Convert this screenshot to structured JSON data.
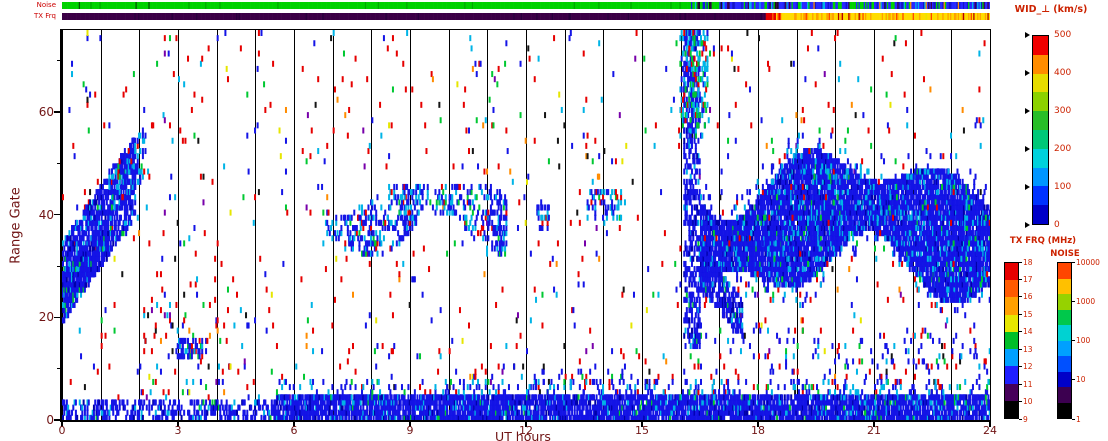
{
  "colors": {
    "background": "#ffffff",
    "axis_text": "#701414",
    "colorbar_label": "#cc2200",
    "strip_label": "#cc0000",
    "grid": "#000000"
  },
  "strips": {
    "noise_label": "Noise",
    "txfrq_label": "TX Frq"
  },
  "axes": {
    "xlabel": "UT hours",
    "ylabel": "Range Gate",
    "x_ticks": [
      0,
      3,
      6,
      9,
      12,
      15,
      18,
      21,
      24
    ],
    "y_ticks": [
      0,
      20,
      40,
      60
    ],
    "y_minor_ticks": [
      10,
      30,
      50,
      70
    ],
    "x_range_hours": [
      0,
      24
    ],
    "y_range_gates": [
      0,
      76
    ]
  },
  "colorbars": {
    "wid": {
      "title": "WID_⊥ (km/s)",
      "range": [
        0,
        500
      ],
      "ticks": [
        0,
        100,
        200,
        300,
        400,
        500
      ],
      "colors_bottom_to_top": [
        "#0000c8",
        "#0032ff",
        "#0096ff",
        "#00d2dc",
        "#00c878",
        "#28be28",
        "#8cd200",
        "#e6dc00",
        "#ff8c00",
        "#f00000"
      ]
    },
    "txfrq": {
      "title": "TX FRQ (MHz)",
      "ticks": [
        9,
        10,
        11,
        12,
        13,
        14,
        15,
        16,
        17,
        18
      ],
      "colors_bottom_to_top": [
        "#000000",
        "#46005a",
        "#1e1eff",
        "#00a0ff",
        "#00be28",
        "#e6e600",
        "#ffa000",
        "#ff5a00",
        "#e60000"
      ]
    },
    "noise": {
      "title": "NOISE",
      "ticks": [
        1,
        10,
        100,
        1000,
        10000
      ],
      "scale": "log",
      "colors_bottom_to_top": [
        "#000000",
        "#3c0050",
        "#0000c8",
        "#0050ff",
        "#00a0ff",
        "#00d2d2",
        "#00c84b",
        "#96d200",
        "#ffc000",
        "#ff4600"
      ]
    }
  },
  "chart_data": {
    "type": "heatmap",
    "title": "WID_⊥ (km/s)",
    "xlabel": "UT hours",
    "ylabel": "Range Gate",
    "x_range": [
      0,
      24
    ],
    "y_range": [
      0,
      76
    ],
    "grid": "vertical black line every 1 hour",
    "legend_position": "right",
    "seed": 1337,
    "time_cells_per_hour": 30,
    "features": [
      "ground/near-range blue band at gates 0-5 across all 24 UT, densest 06-24 UT",
      "rising dense blue echo region gates 20-55 between 00-02 UT",
      "small blue patch gates 12-16 near 03-03.7 UT",
      "patchy blue/cyan echoes gates 33-47 between 07-11.5 UT",
      "tall narrow echo column gates 14-76 near 16.2 UT with cyan/green top",
      "dense blue echo band gates 21-55 from 16.5 to 24 UT",
      "sparse multicolour speckle (red, blue, cyan, green, black) over whole field",
      "noise status strip: green 0-17 UT then mottled blue 17-24 UT",
      "tx frequency strip: dark purple 0-18.2 UT then yellow/orange 18.5-24 UT"
    ],
    "palettes": {
      "scatter": [
        {
          "c": "#e60000",
          "w": 0.36
        },
        {
          "c": "#1414e6",
          "w": 0.22
        },
        {
          "c": "#00b4e6",
          "w": 0.13
        },
        {
          "c": "#00c832",
          "w": 0.09
        },
        {
          "c": "#141414",
          "w": 0.06
        },
        {
          "c": "#ff8c00",
          "w": 0.05
        },
        {
          "c": "#e6e600",
          "w": 0.04
        },
        {
          "c": "#7800aa",
          "w": 0.05
        }
      ],
      "scatterBlue": [
        {
          "c": "#1414e6",
          "w": 0.55
        },
        {
          "c": "#e60000",
          "w": 0.18
        },
        {
          "c": "#00b4e6",
          "w": 0.12
        },
        {
          "c": "#00c832",
          "w": 0.08
        },
        {
          "c": "#141414",
          "w": 0.07
        }
      ],
      "blueDense": [
        {
          "c": "#1414e6",
          "w": 0.8
        },
        {
          "c": "#0000aa",
          "w": 0.08
        },
        {
          "c": "#00b4e6",
          "w": 0.1
        },
        {
          "c": "#00c832",
          "w": 0.02
        }
      ],
      "blueCyan": [
        {
          "c": "#1414e6",
          "w": 0.58
        },
        {
          "c": "#00b4e6",
          "w": 0.3
        },
        {
          "c": "#00c832",
          "w": 0.06
        },
        {
          "c": "#e60000",
          "w": 0.06
        }
      ],
      "blueCyanGreen": [
        {
          "c": "#00b4e6",
          "w": 0.4
        },
        {
          "c": "#1414e6",
          "w": 0.3
        },
        {
          "c": "#00c832",
          "w": 0.2
        },
        {
          "c": "#e60000",
          "w": 0.1
        }
      ],
      "noiseGreen": [
        {
          "c": "#00d200",
          "w": 0.96
        },
        {
          "c": "#00aa00",
          "w": 0.03
        },
        {
          "c": "#005a00",
          "w": 0.01
        }
      ],
      "noiseTransition": [
        {
          "c": "#00d200",
          "w": 0.45
        },
        {
          "c": "#1414e6",
          "w": 0.2
        },
        {
          "c": "#141414",
          "w": 0.15
        },
        {
          "c": "#3c0050",
          "w": 0.1
        },
        {
          "c": "#00b4e6",
          "w": 0.1
        }
      ],
      "noiseBlue": [
        {
          "c": "#2828ff",
          "w": 0.5
        },
        {
          "c": "#1414c8",
          "w": 0.15
        },
        {
          "c": "#00d200",
          "w": 0.12
        },
        {
          "c": "#00b4e6",
          "w": 0.08
        },
        {
          "c": "#3c0050",
          "w": 0.07
        },
        {
          "c": "#141414",
          "w": 0.04
        },
        {
          "c": "#ff8c00",
          "w": 0.04
        }
      ],
      "noiseGreenPatch": [
        {
          "c": "#00d200",
          "w": 0.7
        },
        {
          "c": "#2828ff",
          "w": 0.3
        }
      ],
      "txDark": [
        {
          "c": "#3c0046",
          "w": 0.97
        },
        {
          "c": "#28003c",
          "w": 0.03
        }
      ],
      "txYellow": [
        {
          "c": "#ffdc00",
          "w": 0.6
        },
        {
          "c": "#ffa000",
          "w": 0.22
        },
        {
          "c": "#ff4600",
          "w": 0.09
        },
        {
          "c": "#e6e600",
          "w": 0.06
        },
        {
          "c": "#b40000",
          "w": 0.03
        }
      ],
      "txRed": [
        {
          "c": "#e60000",
          "w": 0.5
        },
        {
          "c": "#ff6400",
          "w": 0.3
        },
        {
          "c": "#ffdc00",
          "w": 0.2
        }
      ]
    },
    "regions": [
      {
        "name": "background-scatter",
        "type": "rect",
        "h0": 0,
        "h1": 24,
        "g0": 4,
        "g1": 76,
        "density": 0.016,
        "palette": "scatter"
      },
      {
        "name": "postmidnight-scatter",
        "type": "rect",
        "h0": 2.0,
        "h1": 4.8,
        "g0": 4,
        "g1": 24,
        "density": 0.045,
        "palette": "scatter"
      },
      {
        "name": "low-gate-speckle",
        "type": "rect",
        "h0": 10,
        "h1": 17,
        "g0": 5,
        "g1": 11,
        "density": 0.07,
        "palette": "scatterBlue"
      },
      {
        "name": "evening-low-speckle",
        "type": "rect",
        "h0": 17,
        "h1": 24,
        "g0": 5,
        "g1": 18,
        "density": 0.05,
        "palette": "scatterBlue"
      },
      {
        "name": "ground-band-night",
        "type": "rect",
        "h0": 0,
        "h1": 5.5,
        "g0": 0,
        "g1": 4,
        "density": 0.4,
        "palette": "blueDense"
      },
      {
        "name": "ground-band-day",
        "type": "rect",
        "h0": 5.5,
        "h1": 24,
        "g0": 0,
        "g1": 5,
        "density": 0.85,
        "palette": "blueDense"
      },
      {
        "name": "ground-band-fringe",
        "type": "rect",
        "h0": 5.5,
        "h1": 24,
        "g0": 5,
        "g1": 8,
        "density": 0.12,
        "palette": "blueCyan"
      },
      {
        "name": "dawn-rise",
        "type": "slant",
        "h0": 0,
        "h1": 1.9,
        "c0": 27,
        "slope": 11,
        "half": 8,
        "density": 0.72,
        "palette": "blueDense"
      },
      {
        "name": "dawn-core",
        "type": "slant",
        "h0": 0,
        "h1": 1.2,
        "c0": 25,
        "slope": 9,
        "half": 4,
        "density": 0.85,
        "palette": "blueDense"
      },
      {
        "name": "dawn-top-tail",
        "type": "slant",
        "h0": 1.2,
        "h1": 2.15,
        "c0": 44,
        "slope": 9,
        "half": 5,
        "density": 0.4,
        "palette": "blueCyan"
      },
      {
        "name": "morning-patch",
        "type": "rect",
        "h0": 2.95,
        "h1": 3.75,
        "g0": 12,
        "g1": 16,
        "density": 0.5,
        "palette": "blueCyan"
      },
      {
        "name": "midday-band",
        "type": "wave",
        "h0": 6.8,
        "h1": 11.5,
        "c0": 40,
        "amp": 3,
        "freq": 1.4,
        "phase": 0.5,
        "half0": 4.5,
        "hamp": 2,
        "freq2": 2.3,
        "phase2": 1.2,
        "density": 0.5,
        "palette": "blueCyan",
        "dmod": {
          "base": 0.25,
          "freq": 2.6,
          "phase": 0.3
        }
      },
      {
        "name": "noon-patch",
        "type": "rect",
        "h0": 12.25,
        "h1": 12.6,
        "g0": 37,
        "g1": 42,
        "density": 0.3,
        "palette": "blueCyan"
      },
      {
        "name": "afternoon-patch",
        "type": "rect",
        "h0": 13.55,
        "h1": 14.45,
        "g0": 39,
        "g1": 45,
        "density": 0.35,
        "palette": "blueCyan"
      },
      {
        "name": "evening-streak",
        "type": "rect",
        "h0": 16.05,
        "h1": 16.5,
        "g0": 14,
        "g1": 76,
        "density": 0.5,
        "palette": "blueDense"
      },
      {
        "name": "evening-streak-top",
        "type": "rect",
        "h0": 15.95,
        "h1": 16.7,
        "g0": 55,
        "g1": 76,
        "density": 0.3,
        "palette": "blueCyanGreen"
      },
      {
        "name": "evening-tail",
        "type": "slant",
        "h0": 16.45,
        "h1": 17.6,
        "c0": 30,
        "slope": -9,
        "half": 4,
        "density": 0.7,
        "palette": "blueDense"
      },
      {
        "name": "evening-main",
        "type": "wave",
        "h0": 16.5,
        "h1": 24,
        "c0": 38,
        "amp": 4,
        "freq": 0.9,
        "phase": 2.0,
        "half0": 9,
        "hamp": 4,
        "freq2": 1.7,
        "phase2": 0.5,
        "density": 0.9,
        "palette": "blueDense"
      },
      {
        "name": "evening-fringe",
        "type": "wave",
        "h0": 16.5,
        "h1": 24,
        "c0": 38,
        "amp": 4,
        "freq": 0.9,
        "phase": 2.0,
        "half0": 13,
        "hamp": 4,
        "freq2": 1.7,
        "phase2": 0.5,
        "density": 0.1,
        "palette": "blueCyan"
      }
    ],
    "strips": {
      "noise": [
        {
          "h0": 16.25,
          "h1": 17.0,
          "palette": "noiseTransition"
        },
        {
          "h0": 20.35,
          "h1": 20.85,
          "palette": "noiseGreenPatch"
        },
        {
          "h0": 0,
          "h1": 16.25,
          "palette": "noiseGreen"
        },
        {
          "h0": 17.0,
          "h1": 24,
          "palette": "noiseBlue"
        }
      ],
      "txfrq": [
        {
          "h0": 18.2,
          "h1": 18.55,
          "palette": "txRed"
        },
        {
          "h0": 0,
          "h1": 18.2,
          "palette": "txDark"
        },
        {
          "h0": 18.55,
          "h1": 24,
          "palette": "txYellow"
        }
      ]
    }
  }
}
